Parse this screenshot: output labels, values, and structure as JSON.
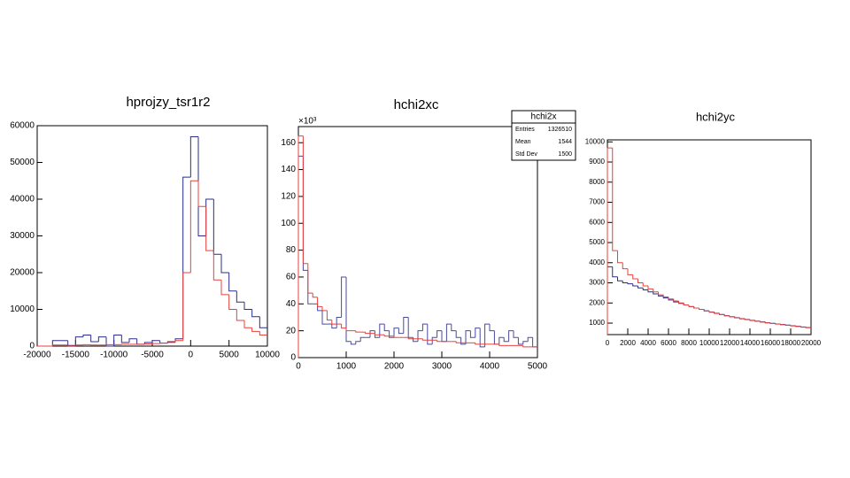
{
  "chart_data": [
    {
      "type": "histogram",
      "title": "hprojzy_tsr1r2",
      "bins": [
        -20000,
        -19000,
        -18000,
        -17000,
        -16000,
        -15000,
        -14000,
        -13000,
        -12000,
        -11000,
        -10000,
        -9000,
        -8000,
        -7000,
        -6000,
        -5000,
        -4000,
        -3000,
        -2000,
        -1000,
        0,
        1000,
        2000,
        3000,
        4000,
        5000,
        6000,
        7000,
        8000,
        9000,
        10000
      ],
      "series": [
        {
          "color": "#2b2b8c",
          "values": [
            0,
            0,
            1500,
            1500,
            0,
            2500,
            3000,
            1200,
            2500,
            0,
            3000,
            1000,
            2000,
            500,
            1000,
            1500,
            800,
            1200,
            2000,
            46000,
            57000,
            30000,
            40000,
            25000,
            20000,
            15000,
            12000,
            10000,
            8000,
            5000
          ]
        },
        {
          "color": "#e8403a",
          "values": [
            0,
            0,
            300,
            300,
            200,
            300,
            400,
            300,
            300,
            400,
            400,
            500,
            500,
            500,
            600,
            700,
            800,
            1000,
            1500,
            20000,
            45000,
            38000,
            26000,
            18000,
            14000,
            10000,
            7000,
            5000,
            4000,
            3000
          ]
        }
      ],
      "xlim": [
        -20000,
        10000
      ],
      "ylim": [
        0,
        60000
      ],
      "xticks": [
        -20000,
        -15000,
        -10000,
        -5000,
        0,
        5000,
        10000
      ],
      "yticks": [
        0,
        10000,
        20000,
        30000,
        40000,
        50000,
        60000
      ]
    },
    {
      "type": "histogram",
      "title": "hchi2xc",
      "y_scale_label": "×10³",
      "bins": [
        0,
        100,
        200,
        300,
        400,
        500,
        600,
        700,
        800,
        900,
        1000,
        1100,
        1200,
        1300,
        1400,
        1500,
        1600,
        1700,
        1800,
        1900,
        2000,
        2100,
        2200,
        2300,
        2400,
        2500,
        2600,
        2700,
        2800,
        2900,
        3000,
        3100,
        3200,
        3300,
        3400,
        3500,
        3600,
        3700,
        3800,
        3900,
        4000,
        4100,
        4200,
        4300,
        4400,
        4500,
        4600,
        4700,
        4800,
        4900,
        5000
      ],
      "series": [
        {
          "color": "#4a4a9c",
          "values": [
            150,
            65,
            40,
            40,
            35,
            25,
            25,
            22,
            30,
            60,
            12,
            10,
            12,
            15,
            15,
            20,
            15,
            25,
            20,
            15,
            22,
            18,
            30,
            15,
            12,
            20,
            25,
            10,
            15,
            20,
            12,
            25,
            20,
            15,
            10,
            20,
            15,
            22,
            8,
            25,
            20,
            10,
            15,
            12,
            20,
            15,
            10,
            12,
            15,
            8
          ]
        },
        {
          "color": "#e8403a",
          "values": [
            165,
            70,
            48,
            45,
            38,
            35,
            28,
            25,
            25,
            22,
            20,
            20,
            19,
            19,
            18,
            18,
            17,
            17,
            16,
            16,
            15,
            15,
            15,
            14,
            14,
            14,
            13,
            13,
            13,
            12,
            12,
            12,
            12,
            11,
            11,
            11,
            11,
            10,
            10,
            10,
            10,
            10,
            9,
            9,
            9,
            9,
            9,
            8,
            8,
            8
          ]
        }
      ],
      "xlim": [
        0,
        5000
      ],
      "ylim": [
        0,
        172
      ],
      "xticks": [
        0,
        1000,
        2000,
        3000,
        4000,
        5000
      ],
      "yticks": [
        0,
        20,
        40,
        60,
        80,
        100,
        120,
        140,
        160
      ],
      "stats": {
        "title": "hchi2x",
        "rows": [
          {
            "label": "Entries",
            "value": 1326510
          },
          {
            "label": "Mean",
            "value": 1544
          },
          {
            "label": "Std Dev",
            "value": 1500
          }
        ]
      }
    },
    {
      "type": "histogram",
      "title": "hchi2yc",
      "bins": [
        0,
        500,
        1000,
        1500,
        2000,
        2500,
        3000,
        3500,
        4000,
        4500,
        5000,
        5500,
        6000,
        6500,
        7000,
        7500,
        8000,
        8500,
        9000,
        9500,
        10000,
        10500,
        11000,
        11500,
        12000,
        12500,
        13000,
        13500,
        14000,
        14500,
        15000,
        15500,
        16000,
        16500,
        17000,
        17500,
        18000,
        18500,
        19000,
        19500,
        20000
      ],
      "series": [
        {
          "color": "#2b2b8c",
          "values": [
            3800,
            3300,
            3100,
            3000,
            2950,
            2850,
            2750,
            2650,
            2550,
            2450,
            2350,
            2250,
            2150,
            2050,
            1980,
            1900,
            1820,
            1750,
            1680,
            1610,
            1550,
            1490,
            1430,
            1370,
            1320,
            1270,
            1220,
            1180,
            1140,
            1100,
            1060,
            1020,
            990,
            960,
            930,
            900,
            870,
            840,
            810,
            780
          ]
        },
        {
          "color": "#e8403a",
          "values": [
            9700,
            4600,
            4000,
            3700,
            3400,
            3200,
            3000,
            2850,
            2700,
            2550,
            2400,
            2300,
            2200,
            2100,
            2000,
            1900,
            1820,
            1750,
            1680,
            1600,
            1540,
            1480,
            1420,
            1360,
            1310,
            1260,
            1210,
            1170,
            1130,
            1090,
            1050,
            1010,
            980,
            950,
            920,
            890,
            860,
            830,
            800,
            770
          ]
        }
      ],
      "xlim": [
        0,
        20000
      ],
      "ylim": [
        430,
        10100
      ],
      "xticks": [
        0,
        2000,
        4000,
        6000,
        8000,
        10000,
        12000,
        14000,
        16000,
        18000,
        20000
      ],
      "yticks": [
        1000,
        2000,
        3000,
        4000,
        5000,
        6000,
        7000,
        8000,
        9000,
        10000
      ]
    }
  ]
}
